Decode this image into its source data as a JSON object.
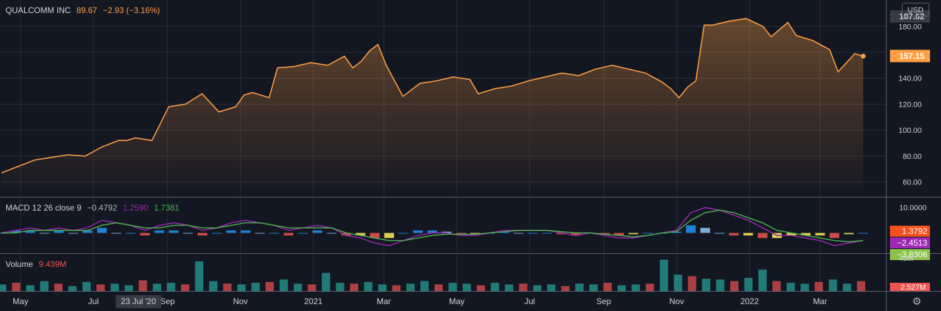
{
  "legend": {
    "symbol": "QUALCOMM INC",
    "price": "89.67",
    "change": "−2.93 (−3.16%)",
    "macd_label": "MACD 12 26 close 9",
    "macd_hist_value": "−0.4792",
    "macd_value": "1.2590",
    "signal_value": "1.7381",
    "volume_label": "Volume",
    "volume_value": "9.439M"
  },
  "currency_button": "USD",
  "crosshair_date": "23 Jul '20",
  "colors": {
    "background": "#131722",
    "price_line": "#ff9f43",
    "macd_line": "#9c27b0",
    "signal_line": "#4caf50",
    "hist_up": "#2196f3",
    "hist_down": "#ffee58",
    "hist_down_strong": "#ef5350",
    "volume_up": "#26a69a",
    "volume_down": "#ef5350",
    "grid": "#2a2e39",
    "axis_text": "#d1d4dc"
  },
  "chart_data": [
    {
      "type": "area",
      "series": [
        {
          "name": "QUALCOMM INC",
          "values": [
            67,
            72,
            77,
            79,
            81,
            80,
            87,
            92,
            92,
            94,
            92,
            118,
            120,
            128,
            114,
            118,
            127,
            129,
            125,
            148,
            149,
            152,
            150,
            157,
            148,
            153,
            161,
            166,
            150,
            138,
            126,
            136,
            138,
            141,
            139,
            128,
            132,
            134,
            138,
            141,
            144,
            142,
            147,
            150,
            147,
            144,
            137,
            132,
            125,
            133,
            138,
            181,
            181,
            184,
            186,
            180,
            172,
            183,
            173,
            169,
            162,
            145,
            159,
            157
          ]
        }
      ],
      "x": [
        "2020-04-15",
        "2020-04-29",
        "2020-05-13",
        "2020-05-27",
        "2020-06-10",
        "2020-06-24",
        "2020-07-08",
        "2020-07-22",
        "2020-07-29",
        "2020-08-05",
        "2020-08-19",
        "2020-09-02",
        "2020-09-16",
        "2020-09-30",
        "2020-10-14",
        "2020-10-28",
        "2020-11-04",
        "2020-11-11",
        "2020-11-25",
        "2020-12-02",
        "2020-12-16",
        "2020-12-30",
        "2021-01-13",
        "2021-01-27",
        "2021-02-03",
        "2021-02-10",
        "2021-02-17",
        "2021-02-24",
        "2021-03-03",
        "2021-03-10",
        "2021-03-17",
        "2021-03-31",
        "2021-04-14",
        "2021-04-28",
        "2021-05-12",
        "2021-05-19",
        "2021-06-02",
        "2021-06-16",
        "2021-06-30",
        "2021-07-14",
        "2021-07-28",
        "2021-08-11",
        "2021-08-25",
        "2021-09-08",
        "2021-09-22",
        "2021-10-06",
        "2021-10-20",
        "2021-10-27",
        "2021-11-03",
        "2021-11-10",
        "2021-11-17",
        "2021-11-24",
        "2021-12-01",
        "2021-12-15",
        "2021-12-29",
        "2022-01-12",
        "2022-01-19",
        "2022-02-02",
        "2022-02-09",
        "2022-02-23",
        "2022-03-09",
        "2022-03-16",
        "2022-03-30",
        "2022-04-06"
      ],
      "y_ticks": [
        "60.00",
        "80.00",
        "100.00",
        "120.00",
        "140.00",
        "160.00",
        "180.00"
      ],
      "last_price_label": "157.15",
      "high_label": "187.62",
      "ylim": [
        55,
        195
      ]
    },
    {
      "type": "line",
      "series": [
        {
          "name": "MACD",
          "values": [
            0,
            1,
            2,
            1,
            2,
            1,
            2,
            5,
            4,
            3,
            1,
            3,
            4,
            3,
            1,
            2,
            4,
            5,
            4,
            3,
            1,
            2,
            3,
            2,
            -1,
            -2,
            -4,
            -5,
            -3,
            -1,
            0,
            0,
            -1,
            -1,
            0,
            1,
            1,
            1,
            1,
            0,
            -1,
            0,
            -1,
            -2,
            -2,
            -1,
            0,
            1,
            8,
            10,
            9,
            7,
            5,
            2,
            -1,
            -1,
            -2,
            -3,
            -5,
            -4,
            -3
          ]
        },
        {
          "name": "Signal",
          "values": [
            0,
            0,
            1,
            1,
            1,
            1,
            1,
            3,
            4,
            3,
            2,
            2,
            3,
            3,
            2,
            2,
            3,
            4,
            4,
            3,
            2,
            2,
            2,
            2,
            0,
            -1,
            -2,
            -3,
            -3,
            -2,
            -1,
            -0.5,
            -0.5,
            -0.5,
            0,
            0.5,
            1,
            1,
            1,
            0.5,
            0,
            0,
            -0.5,
            -1,
            -1.5,
            -1,
            0,
            0.5,
            5,
            8,
            9,
            8,
            6,
            4,
            1,
            0,
            -1,
            -2,
            -3,
            -3.5,
            -3
          ]
        }
      ],
      "y_ticks": [
        "10.0000"
      ],
      "value_labels": [
        "1.3792",
        "−2.4513",
        "−3.8306"
      ],
      "ylim": [
        -8,
        14
      ]
    },
    {
      "type": "bar",
      "series": [
        {
          "name": "Volume",
          "values": [
            8,
            10,
            7,
            12,
            9,
            6,
            11,
            8,
            9,
            7,
            13,
            9,
            10,
            8,
            36,
            12,
            9,
            8,
            10,
            11,
            14,
            9,
            8,
            22,
            10,
            9,
            11,
            8,
            7,
            9,
            12,
            8,
            10,
            9,
            7,
            10,
            8,
            9,
            7,
            8,
            6,
            9,
            8,
            10,
            7,
            8,
            9,
            38,
            20,
            18,
            15,
            14,
            12,
            16,
            26,
            12,
            10,
            9,
            11,
            14,
            9,
            12
          ]
        }
      ],
      "y_ticks": [
        "40M"
      ],
      "last_value_label": "2.527M",
      "ylim": [
        0,
        45
      ]
    }
  ],
  "x_axis": {
    "ticks": [
      "May",
      "Jul",
      "Sep",
      "Nov",
      "2021",
      "Mar",
      "May",
      "Jul",
      "Sep",
      "Nov",
      "2022",
      "Mar"
    ]
  }
}
